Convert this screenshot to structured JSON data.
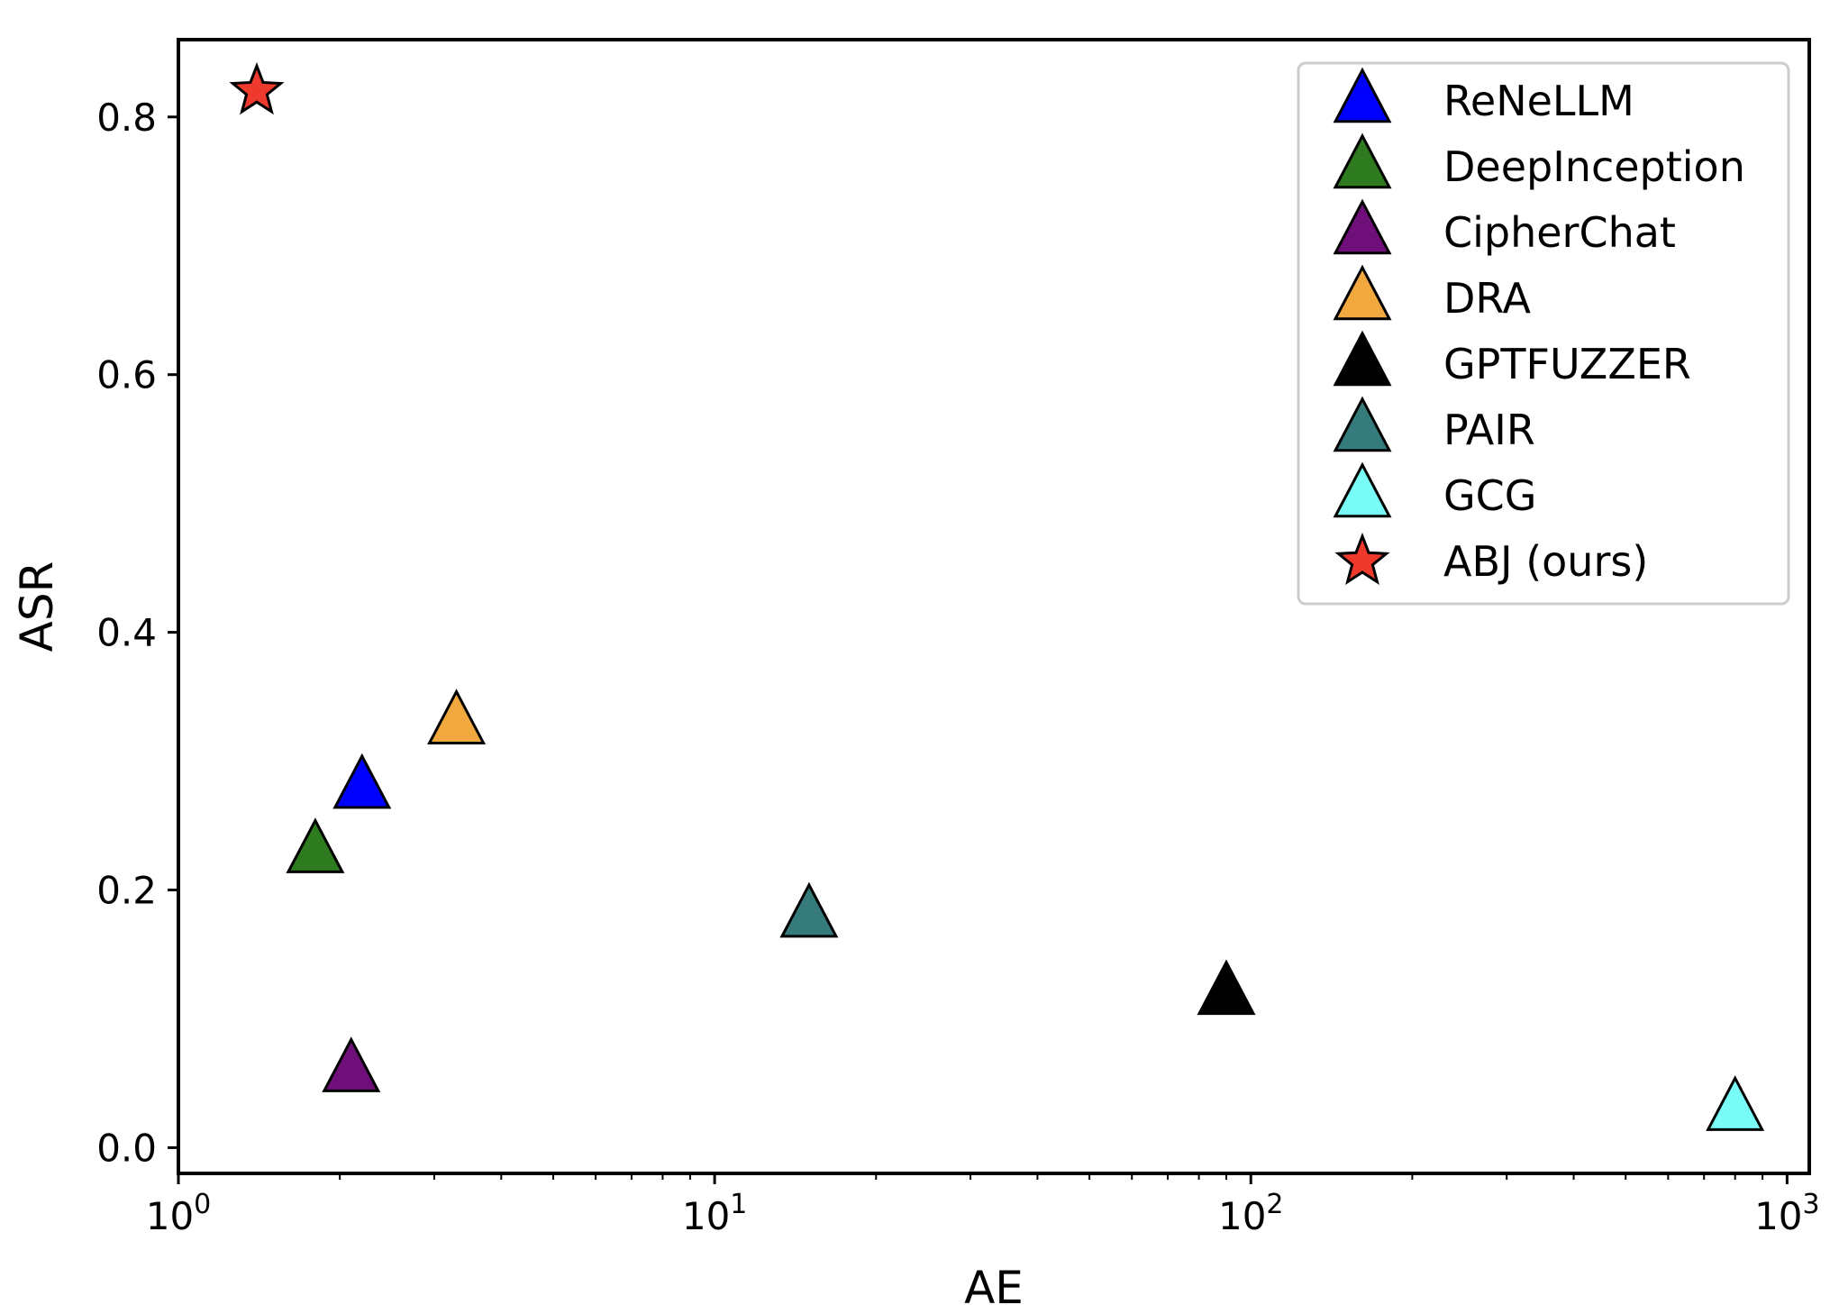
{
  "chart_data": {
    "type": "scatter",
    "title": "",
    "xlabel": "AE",
    "ylabel": "ASR",
    "xscale": "log",
    "xlim": [
      1,
      1100
    ],
    "ylim": [
      -0.02,
      0.86
    ],
    "xticks": [
      {
        "value": 1,
        "base": "10",
        "exp": "0"
      },
      {
        "value": 10,
        "base": "10",
        "exp": "1"
      },
      {
        "value": 100,
        "base": "10",
        "exp": "2"
      },
      {
        "value": 1000,
        "base": "10",
        "exp": "3"
      }
    ],
    "yticks": [
      "0.0",
      "0.2",
      "0.4",
      "0.6",
      "0.8"
    ],
    "legend_position": "top-right",
    "series": [
      {
        "name": "ReNeLLM",
        "marker": "triangle",
        "color": "#0000ff",
        "x": 2.2,
        "y": 0.28
      },
      {
        "name": "DeepInception",
        "marker": "triangle",
        "color": "#2e7a1f",
        "x": 1.8,
        "y": 0.23
      },
      {
        "name": "CipherChat",
        "marker": "triangle",
        "color": "#6f0f79",
        "x": 2.1,
        "y": 0.06
      },
      {
        "name": "DRA",
        "marker": "triangle",
        "color": "#f0a83f",
        "x": 3.3,
        "y": 0.33
      },
      {
        "name": "GPTFUZZER",
        "marker": "triangle",
        "color": "#000000",
        "x": 90,
        "y": 0.12
      },
      {
        "name": "PAIR",
        "marker": "triangle",
        "color": "#357b7b",
        "x": 15,
        "y": 0.18
      },
      {
        "name": "GCG",
        "marker": "triangle",
        "color": "#79fbf7",
        "x": 800,
        "y": 0.03
      },
      {
        "name": "ABJ (ours)",
        "marker": "star",
        "color": "#ee3a2c",
        "x": 1.4,
        "y": 0.82
      }
    ]
  }
}
